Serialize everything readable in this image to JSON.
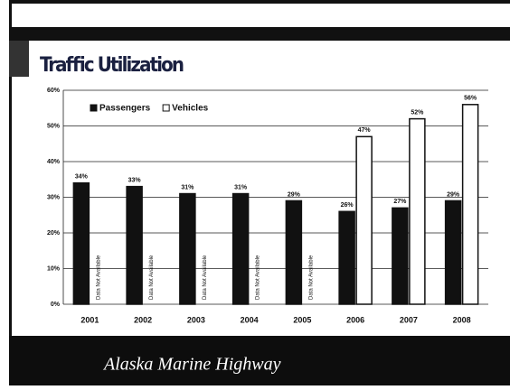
{
  "chart_data": {
    "type": "bar",
    "title": "Traffic Utilization",
    "categories": [
      "2001",
      "2002",
      "2003",
      "2004",
      "2005",
      "2006",
      "2007",
      "2008"
    ],
    "series": [
      {
        "name": "Passengers",
        "color": "#111111",
        "values": [
          34,
          33,
          31,
          31,
          29,
          26,
          27,
          29
        ],
        "value_labels": [
          "34%",
          "33%",
          "31%",
          "31%",
          "29%",
          "26%",
          "27%",
          "29%"
        ]
      },
      {
        "name": "Vehicles",
        "color": "#ffffff",
        "values": [
          null,
          null,
          null,
          null,
          null,
          47,
          52,
          56
        ],
        "value_labels": [
          null,
          null,
          null,
          null,
          null,
          "47%",
          "52%",
          "56%"
        ]
      }
    ],
    "annotation": "Data Not Available",
    "ylim": [
      0,
      60
    ],
    "yticks": [
      {
        "value": 0,
        "label": "0%"
      },
      {
        "value": 10,
        "label": "10%"
      },
      {
        "value": 20,
        "label": "20%"
      },
      {
        "value": 30,
        "label": "30%"
      },
      {
        "value": 40,
        "label": "40%"
      },
      {
        "value": 50,
        "label": "50%"
      },
      {
        "value": 60,
        "label": "60%"
      }
    ],
    "grid": true,
    "legend": "top-left"
  },
  "footer": "Alaska Marine Highway"
}
